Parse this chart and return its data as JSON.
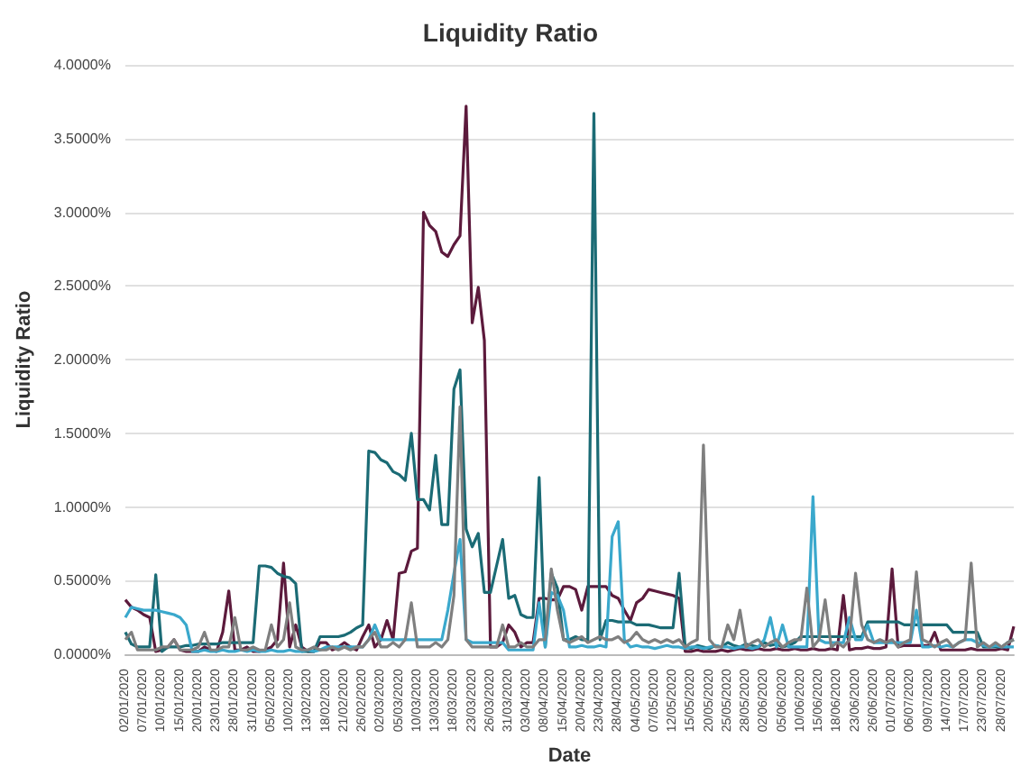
{
  "chart_data": {
    "type": "line",
    "title": "Liquidity Ratio",
    "xlabel": "Date",
    "ylabel": "Liquidity Ratio",
    "categories": [
      "02/01/2020",
      null,
      null,
      "07/01/2020",
      null,
      null,
      "10/01/2020",
      null,
      null,
      "15/01/2020",
      null,
      null,
      "20/01/2020",
      null,
      null,
      "23/01/2020",
      null,
      null,
      "28/01/2020",
      null,
      null,
      "31/01/2020",
      null,
      null,
      "05/02/2020",
      null,
      null,
      "10/02/2020",
      null,
      null,
      "13/02/2020",
      null,
      null,
      "18/02/2020",
      null,
      null,
      "21/02/2020",
      null,
      null,
      "26/02/2020",
      null,
      null,
      "02/03/2020",
      null,
      null,
      "05/03/2020",
      null,
      null,
      "10/03/2020",
      null,
      null,
      "13/03/2020",
      null,
      null,
      "18/03/2020",
      null,
      null,
      "23/03/2020",
      null,
      null,
      "26/03/2020",
      null,
      null,
      "31/03/2020",
      null,
      null,
      "03/04/2020",
      null,
      null,
      "08/04/2020",
      null,
      null,
      "15/04/2020",
      null,
      null,
      "20/04/2020",
      null,
      null,
      "23/04/2020",
      null,
      null,
      "28/04/2020",
      null,
      null,
      "04/05/2020",
      null,
      null,
      "07/05/2020",
      null,
      null,
      "12/05/2020",
      null,
      null,
      "15/05/2020",
      null,
      null,
      "20/05/2020",
      null,
      null,
      "25/05/2020",
      null,
      null,
      "28/05/2020",
      null,
      null,
      "02/06/2020",
      null,
      null,
      "05/06/2020",
      null,
      null,
      "10/06/2020",
      null,
      null,
      "15/06/2020",
      null,
      null,
      "18/06/2020",
      null,
      null,
      "23/06/2020",
      null,
      null,
      "26/06/2020",
      null,
      null,
      "01/07/2020",
      null,
      null,
      "06/07/2020",
      null,
      null,
      "09/07/2020",
      null,
      null,
      "14/07/2020",
      null,
      null,
      "17/07/2020",
      null,
      null,
      "23/07/2020",
      null,
      null,
      "28/07/2020",
      null,
      null
    ],
    "series": [
      {
        "color": "#5c1a3c",
        "values": [
          0.37,
          0.32,
          0.3,
          0.27,
          0.25,
          0.02,
          0.03,
          0.05,
          0.1,
          0.03,
          0.02,
          0.02,
          0.02,
          0.05,
          0.03,
          0.02,
          0.15,
          0.43,
          0.03,
          0.03,
          0.05,
          0.02,
          0.02,
          0.03,
          0.05,
          0.1,
          0.62,
          0.05,
          0.2,
          0.05,
          0.02,
          0.02,
          0.08,
          0.08,
          0.03,
          0.05,
          0.08,
          0.05,
          0.03,
          0.12,
          0.2,
          0.05,
          0.1,
          0.23,
          0.1,
          0.55,
          0.56,
          0.7,
          0.72,
          3.0,
          2.91,
          2.87,
          2.73,
          2.7,
          2.78,
          2.84,
          3.72,
          2.25,
          2.49,
          2.13,
          0.05,
          0.05,
          0.08,
          0.2,
          0.15,
          0.05,
          0.08,
          0.08,
          0.38,
          0.38,
          0.37,
          0.37,
          0.46,
          0.46,
          0.44,
          0.3,
          0.46,
          0.46,
          0.46,
          0.46,
          0.4,
          0.38,
          0.3,
          0.23,
          0.35,
          0.38,
          0.44,
          0.43,
          0.42,
          0.41,
          0.4,
          0.38,
          0.02,
          0.02,
          0.03,
          0.02,
          0.02,
          0.02,
          0.03,
          0.02,
          0.03,
          0.04,
          0.03,
          0.03,
          0.04,
          0.03,
          0.03,
          0.04,
          0.03,
          0.03,
          0.04,
          0.03,
          0.03,
          0.04,
          0.03,
          0.03,
          0.04,
          0.03,
          0.4,
          0.03,
          0.04,
          0.04,
          0.05,
          0.04,
          0.04,
          0.05,
          0.58,
          0.05,
          0.06,
          0.06,
          0.06,
          0.06,
          0.06,
          0.15,
          0.03,
          0.03,
          0.03,
          0.03,
          0.03,
          0.04,
          0.03,
          0.03,
          0.03,
          0.03,
          0.04,
          0.03,
          0.19
        ]
      },
      {
        "color": "#1b6b75",
        "values": [
          0.15,
          0.07,
          0.05,
          0.05,
          0.05,
          0.54,
          0.02,
          0.05,
          0.05,
          0.05,
          0.06,
          0.06,
          0.07,
          0.07,
          0.07,
          0.07,
          0.08,
          0.08,
          0.08,
          0.08,
          0.08,
          0.08,
          0.6,
          0.6,
          0.59,
          0.55,
          0.53,
          0.52,
          0.48,
          0.02,
          0.02,
          0.02,
          0.12,
          0.12,
          0.12,
          0.12,
          0.13,
          0.15,
          0.18,
          0.2,
          1.38,
          1.37,
          1.32,
          1.3,
          1.24,
          1.22,
          1.18,
          1.5,
          1.05,
          1.05,
          0.98,
          1.35,
          0.88,
          0.88,
          1.8,
          1.93,
          0.85,
          0.73,
          0.82,
          0.42,
          0.42,
          0.6,
          0.78,
          0.38,
          0.4,
          0.27,
          0.25,
          0.25,
          1.2,
          0.05,
          0.55,
          0.45,
          0.1,
          0.1,
          0.12,
          0.1,
          0.1,
          3.67,
          0.1,
          0.23,
          0.23,
          0.22,
          0.22,
          0.22,
          0.2,
          0.2,
          0.2,
          0.19,
          0.18,
          0.18,
          0.18,
          0.55,
          0.05,
          0.04,
          0.06,
          0.05,
          0.04,
          0.06,
          0.05,
          0.08,
          0.06,
          0.05,
          0.07,
          0.06,
          0.05,
          0.08,
          0.06,
          0.07,
          0.05,
          0.06,
          0.08,
          0.12,
          0.12,
          0.12,
          0.12,
          0.12,
          0.12,
          0.12,
          0.12,
          0.12,
          0.12,
          0.12,
          0.22,
          0.22,
          0.22,
          0.22,
          0.22,
          0.22,
          0.2,
          0.2,
          0.2,
          0.2,
          0.2,
          0.2,
          0.2,
          0.2,
          0.15,
          0.15,
          0.15,
          0.15,
          0.15,
          0.05,
          0.05,
          0.05,
          0.05,
          0.08,
          0.1
        ]
      },
      {
        "color": "#3aa8cc",
        "values": [
          0.25,
          0.32,
          0.31,
          0.3,
          0.3,
          0.3,
          0.29,
          0.28,
          0.27,
          0.25,
          0.2,
          0.02,
          0.02,
          0.03,
          0.02,
          0.02,
          0.03,
          0.02,
          0.02,
          0.03,
          0.02,
          0.03,
          0.02,
          0.02,
          0.03,
          0.02,
          0.02,
          0.03,
          0.02,
          0.02,
          0.03,
          0.02,
          0.03,
          0.05,
          0.05,
          0.05,
          0.05,
          0.05,
          0.05,
          0.05,
          0.1,
          0.2,
          0.1,
          0.1,
          0.1,
          0.1,
          0.1,
          0.1,
          0.1,
          0.1,
          0.1,
          0.1,
          0.1,
          0.3,
          0.55,
          0.78,
          0.1,
          0.08,
          0.08,
          0.08,
          0.08,
          0.08,
          0.08,
          0.03,
          0.03,
          0.03,
          0.03,
          0.03,
          0.35,
          0.05,
          0.42,
          0.4,
          0.3,
          0.05,
          0.05,
          0.06,
          0.05,
          0.05,
          0.06,
          0.05,
          0.8,
          0.9,
          0.1,
          0.05,
          0.06,
          0.05,
          0.05,
          0.04,
          0.05,
          0.06,
          0.05,
          0.05,
          0.04,
          0.05,
          0.05,
          0.04,
          0.05,
          0.06,
          0.05,
          0.05,
          0.04,
          0.05,
          0.05,
          0.04,
          0.05,
          0.1,
          0.25,
          0.05,
          0.2,
          0.05,
          0.05,
          0.05,
          0.05,
          1.07,
          0.1,
          0.08,
          0.08,
          0.08,
          0.08,
          0.25,
          0.1,
          0.1,
          0.2,
          0.08,
          0.08,
          0.08,
          0.08,
          0.08,
          0.08,
          0.08,
          0.3,
          0.05,
          0.05,
          0.06,
          0.05,
          0.06,
          0.05,
          0.08,
          0.1,
          0.1,
          0.08,
          0.06,
          0.05,
          0.06,
          0.05,
          0.05,
          0.05
        ]
      },
      {
        "color": "#7f7f7f",
        "values": [
          0.1,
          0.15,
          0.03,
          0.03,
          0.03,
          0.03,
          0.05,
          0.05,
          0.1,
          0.03,
          0.03,
          0.03,
          0.05,
          0.15,
          0.03,
          0.03,
          0.05,
          0.05,
          0.25,
          0.03,
          0.03,
          0.05,
          0.03,
          0.03,
          0.2,
          0.05,
          0.1,
          0.35,
          0.05,
          0.03,
          0.03,
          0.05,
          0.03,
          0.03,
          0.05,
          0.03,
          0.05,
          0.03,
          0.05,
          0.05,
          0.1,
          0.15,
          0.05,
          0.05,
          0.08,
          0.05,
          0.1,
          0.35,
          0.05,
          0.05,
          0.05,
          0.08,
          0.05,
          0.1,
          0.4,
          1.68,
          0.1,
          0.05,
          0.05,
          0.05,
          0.05,
          0.05,
          0.2,
          0.05,
          0.05,
          0.08,
          0.05,
          0.05,
          0.1,
          0.1,
          0.58,
          0.3,
          0.1,
          0.08,
          0.1,
          0.12,
          0.08,
          0.1,
          0.12,
          0.1,
          0.1,
          0.12,
          0.08,
          0.1,
          0.15,
          0.1,
          0.08,
          0.1,
          0.08,
          0.1,
          0.08,
          0.1,
          0.05,
          0.08,
          0.1,
          1.42,
          0.1,
          0.05,
          0.05,
          0.2,
          0.1,
          0.3,
          0.05,
          0.08,
          0.1,
          0.05,
          0.08,
          0.1,
          0.05,
          0.08,
          0.1,
          0.1,
          0.45,
          0.05,
          0.1,
          0.37,
          0.05,
          0.08,
          0.05,
          0.1,
          0.55,
          0.2,
          0.1,
          0.08,
          0.1,
          0.08,
          0.1,
          0.05,
          0.08,
          0.1,
          0.56,
          0.1,
          0.08,
          0.05,
          0.08,
          0.1,
          0.05,
          0.08,
          0.1,
          0.62,
          0.05,
          0.08,
          0.05,
          0.08,
          0.05,
          0.08,
          0.1
        ]
      }
    ],
    "ylim": [
      0,
      4
    ],
    "yticks": [
      {
        "value": 0,
        "label": "0.0000%"
      },
      {
        "value": 0.5,
        "label": "0.5000%"
      },
      {
        "value": 1,
        "label": "1.0000%"
      },
      {
        "value": 1.5,
        "label": "1.5000%"
      },
      {
        "value": 2,
        "label": "2.0000%"
      },
      {
        "value": 2.5,
        "label": "2.5000%"
      },
      {
        "value": 3,
        "label": "3.0000%"
      },
      {
        "value": 3.5,
        "label": "3.5000%"
      },
      {
        "value": 4,
        "label": "4.0000%"
      }
    ],
    "grid": "y",
    "marker": "none"
  }
}
